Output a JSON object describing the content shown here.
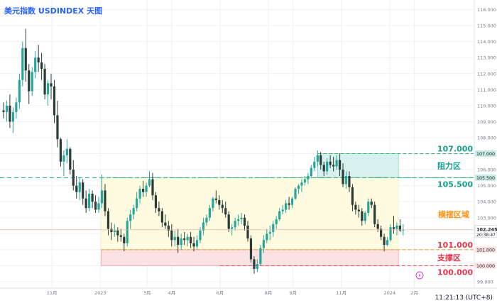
{
  "page": {
    "title": "美元指数 USDINDEX 天图",
    "utc_label": "11:21:13 (UTC+8)"
  },
  "colors": {
    "up": "#26a69a",
    "down": "#ef5350",
    "candle_dark": "#2b3b35",
    "resistance_fill": "#d6f1ee",
    "range_fill": "#fffbe0",
    "support_fill": "#fde2e4",
    "green_line": "#3fb37a",
    "teal_line": "#1aa89c",
    "orange_line": "#f7931a",
    "red_line": "#ef4459",
    "resistance_text": "#13a08a",
    "range_text": "#f7931a",
    "support_text": "#e8344b",
    "grid": "#eef0f3",
    "axis_text": "#787b86"
  },
  "chart_data": {
    "type": "candlestick",
    "title": "美元指数 USDINDEX 天图",
    "x_ticks": [
      "11月",
      "2023",
      "3月",
      "4月",
      "6月",
      "8月",
      "9月",
      "11月",
      "2024",
      "2月"
    ],
    "y_ticks": [
      99.0,
      100.0,
      101.0,
      102.0,
      103.0,
      104.0,
      105.0,
      106.0,
      107.0,
      108.0,
      109.0,
      110.0,
      111.0,
      112.0,
      113.0,
      114.0,
      115.0,
      116.0
    ],
    "ylim": [
      98.6,
      116.6
    ],
    "last_price": {
      "value": 102.245,
      "label": "102.245",
      "countdown": "20:38:47"
    },
    "levels": [
      {
        "name": "阻力区 upper",
        "value": 107.0,
        "label": "107.000",
        "axis_label": "107.000"
      },
      {
        "name": "阻力区 lower",
        "value": 105.5,
        "label": "105.500",
        "axis_label": "105.500"
      },
      {
        "name": "support upper",
        "value": 101.0,
        "label": "101.000",
        "axis_label": "101.000"
      },
      {
        "name": "support lower",
        "value": 100.0,
        "label": "100.000",
        "axis_label": "100.000"
      }
    ],
    "zones": [
      {
        "label": "阻力区",
        "low": 105.5,
        "high": 107.0,
        "from": "2023-10-02",
        "to": "2024-01-12"
      },
      {
        "label": "横摆区域",
        "low": 101.0,
        "high": 105.5,
        "from": "2023-01-02",
        "to": "2024-01-12"
      },
      {
        "label": "支撑区",
        "low": 100.0,
        "high": 101.0,
        "from": "2023-01-02",
        "to": "2024-01-12"
      }
    ],
    "series": [
      {
        "values": [
          [
            "2022-09-01",
            109.7,
            110.2,
            109.2,
            109.6
          ],
          [
            "2022-09-05",
            109.6,
            110.3,
            109.0,
            110.0
          ],
          [
            "2022-09-09",
            110.0,
            110.7,
            108.6,
            109.0
          ],
          [
            "2022-09-13",
            109.0,
            109.9,
            108.3,
            109.6
          ],
          [
            "2022-09-17",
            109.6,
            110.5,
            109.2,
            110.2
          ],
          [
            "2022-09-21",
            110.2,
            112.0,
            109.8,
            111.6
          ],
          [
            "2022-09-25",
            111.6,
            114.0,
            111.2,
            113.6
          ],
          [
            "2022-09-29",
            113.6,
            114.8,
            111.5,
            112.2
          ],
          [
            "2022-10-03",
            112.2,
            112.6,
            110.1,
            110.9
          ],
          [
            "2022-10-07",
            110.9,
            112.4,
            110.6,
            112.1
          ],
          [
            "2022-10-11",
            112.1,
            113.4,
            111.7,
            113.0
          ],
          [
            "2022-10-15",
            113.0,
            113.8,
            112.1,
            112.7
          ],
          [
            "2022-10-19",
            112.7,
            113.3,
            111.6,
            112.3
          ],
          [
            "2022-10-23",
            112.3,
            112.6,
            110.4,
            110.7
          ],
          [
            "2022-10-27",
            110.7,
            111.6,
            110.0,
            111.4
          ],
          [
            "2022-10-31",
            111.4,
            112.0,
            110.4,
            111.2
          ],
          [
            "2022-11-04",
            111.2,
            111.6,
            108.9,
            109.4
          ],
          [
            "2022-11-08",
            109.4,
            110.3,
            107.4,
            107.9
          ],
          [
            "2022-11-12",
            107.9,
            108.0,
            106.2,
            106.5
          ],
          [
            "2022-11-16",
            106.5,
            107.2,
            105.6,
            106.9
          ],
          [
            "2022-11-20",
            106.9,
            107.9,
            106.4,
            107.3
          ],
          [
            "2022-11-24",
            107.3,
            107.4,
            105.7,
            106.0
          ],
          [
            "2022-11-28",
            106.0,
            106.6,
            104.7,
            105.0
          ],
          [
            "2022-12-02",
            105.0,
            105.6,
            104.2,
            104.6
          ],
          [
            "2022-12-06",
            104.6,
            105.5,
            104.1,
            105.2
          ],
          [
            "2022-12-10",
            105.2,
            105.4,
            103.8,
            104.2
          ],
          [
            "2022-12-14",
            104.2,
            104.7,
            103.3,
            103.6
          ],
          [
            "2022-12-18",
            103.6,
            104.8,
            103.4,
            104.5
          ],
          [
            "2022-12-22",
            104.5,
            104.7,
            103.6,
            104.0
          ],
          [
            "2022-12-26",
            104.0,
            104.4,
            103.3,
            103.5
          ],
          [
            "2022-12-30",
            103.5,
            104.3,
            103.3,
            103.9
          ],
          [
            "2023-01-03",
            103.9,
            105.7,
            103.6,
            104.7
          ],
          [
            "2023-01-07",
            104.7,
            105.1,
            103.1,
            103.4
          ],
          [
            "2023-01-11",
            103.4,
            103.6,
            101.9,
            102.3
          ],
          [
            "2023-01-15",
            102.3,
            102.7,
            101.6,
            102.1
          ],
          [
            "2023-01-19",
            102.1,
            102.6,
            101.8,
            102.2
          ],
          [
            "2023-01-23",
            102.2,
            102.4,
            101.5,
            101.9
          ],
          [
            "2023-01-27",
            101.9,
            102.3,
            101.5,
            101.8
          ],
          [
            "2023-01-31",
            101.8,
            102.0,
            100.9,
            101.4
          ],
          [
            "2023-02-04",
            101.4,
            103.0,
            101.2,
            102.8
          ],
          [
            "2023-02-08",
            102.8,
            103.5,
            102.3,
            103.2
          ],
          [
            "2023-02-12",
            103.2,
            103.8,
            102.9,
            103.6
          ],
          [
            "2023-02-16",
            103.6,
            104.6,
            103.4,
            104.2
          ],
          [
            "2023-02-20",
            104.2,
            105.0,
            103.9,
            104.8
          ],
          [
            "2023-02-24",
            104.8,
            105.3,
            104.3,
            104.6
          ],
          [
            "2023-02-28",
            104.6,
            105.2,
            104.3,
            105.0
          ],
          [
            "2023-03-04",
            105.0,
            105.9,
            104.9,
            105.4
          ],
          [
            "2023-03-08",
            105.4,
            105.8,
            104.1,
            104.4
          ],
          [
            "2023-03-12",
            104.4,
            104.6,
            103.3,
            103.6
          ],
          [
            "2023-03-16",
            103.6,
            104.0,
            103.1,
            103.4
          ],
          [
            "2023-03-20",
            103.4,
            103.6,
            102.4,
            102.7
          ],
          [
            "2023-03-24",
            102.7,
            103.2,
            102.3,
            102.5
          ],
          [
            "2023-03-28",
            102.5,
            102.8,
            101.8,
            102.2
          ],
          [
            "2023-04-01",
            102.2,
            102.6,
            101.2,
            101.6
          ],
          [
            "2023-04-05",
            101.6,
            102.2,
            101.2,
            101.8
          ],
          [
            "2023-04-09",
            101.8,
            102.3,
            100.8,
            101.3
          ],
          [
            "2023-04-13",
            101.3,
            102.0,
            101.0,
            101.7
          ],
          [
            "2023-04-17",
            101.7,
            102.1,
            101.3,
            101.6
          ],
          [
            "2023-04-21",
            101.6,
            102.0,
            101.2,
            101.8
          ],
          [
            "2023-04-25",
            101.8,
            102.1,
            101.1,
            101.4
          ],
          [
            "2023-04-29",
            101.4,
            101.8,
            100.9,
            101.2
          ],
          [
            "2023-05-03",
            101.2,
            101.9,
            101.0,
            101.6
          ],
          [
            "2023-05-07",
            101.6,
            102.4,
            101.4,
            102.2
          ],
          [
            "2023-05-11",
            102.2,
            103.0,
            101.9,
            102.7
          ],
          [
            "2023-05-15",
            102.7,
            103.2,
            102.5,
            103.0
          ],
          [
            "2023-05-19",
            103.0,
            103.8,
            102.8,
            103.6
          ],
          [
            "2023-05-23",
            103.6,
            104.3,
            103.4,
            104.2
          ],
          [
            "2023-05-27",
            104.2,
            104.7,
            103.9,
            104.1
          ],
          [
            "2023-05-31",
            104.1,
            104.4,
            103.5,
            103.8
          ],
          [
            "2023-06-04",
            103.8,
            104.1,
            103.3,
            103.6
          ],
          [
            "2023-06-08",
            103.6,
            104.0,
            103.0,
            103.2
          ],
          [
            "2023-06-12",
            103.2,
            103.4,
            102.1,
            102.3
          ],
          [
            "2023-06-16",
            102.3,
            102.6,
            101.9,
            102.4
          ],
          [
            "2023-06-20",
            102.4,
            103.0,
            102.2,
            102.8
          ],
          [
            "2023-06-24",
            102.8,
            103.2,
            102.5,
            102.9
          ],
          [
            "2023-06-28",
            102.9,
            103.3,
            102.6,
            103.0
          ],
          [
            "2023-07-02",
            103.0,
            103.2,
            102.2,
            102.5
          ],
          [
            "2023-07-06",
            102.5,
            102.8,
            101.5,
            101.7
          ],
          [
            "2023-07-10",
            101.7,
            101.9,
            100.2,
            100.4
          ],
          [
            "2023-07-14",
            100.4,
            100.6,
            99.5,
            99.8
          ],
          [
            "2023-07-18",
            99.8,
            100.4,
            99.6,
            100.1
          ],
          [
            "2023-07-22",
            100.1,
            101.3,
            100.0,
            101.1
          ],
          [
            "2023-07-26",
            101.1,
            101.9,
            100.8,
            101.6
          ],
          [
            "2023-07-30",
            101.6,
            102.3,
            101.4,
            102.0
          ],
          [
            "2023-08-03",
            102.0,
            102.5,
            101.6,
            102.1
          ],
          [
            "2023-08-07",
            102.1,
            102.8,
            101.8,
            102.6
          ],
          [
            "2023-08-11",
            102.6,
            103.1,
            102.3,
            102.9
          ],
          [
            "2023-08-15",
            102.9,
            103.6,
            102.8,
            103.4
          ],
          [
            "2023-08-19",
            103.4,
            103.8,
            103.2,
            103.5
          ],
          [
            "2023-08-23",
            103.5,
            104.1,
            103.3,
            103.9
          ],
          [
            "2023-08-27",
            103.9,
            104.3,
            103.5,
            103.8
          ],
          [
            "2023-08-31",
            103.8,
            104.3,
            103.6,
            104.2
          ],
          [
            "2023-09-04",
            104.2,
            104.9,
            104.1,
            104.8
          ],
          [
            "2023-09-08",
            104.8,
            105.1,
            104.5,
            105.0
          ],
          [
            "2023-09-12",
            105.0,
            105.4,
            104.6,
            105.2
          ],
          [
            "2023-09-16",
            105.2,
            105.6,
            105.0,
            105.4
          ],
          [
            "2023-09-20",
            105.4,
            105.8,
            105.1,
            105.6
          ],
          [
            "2023-09-24",
            105.6,
            106.3,
            105.5,
            106.1
          ],
          [
            "2023-09-28",
            106.1,
            106.8,
            105.9,
            106.5
          ],
          [
            "2023-10-02",
            106.5,
            107.2,
            106.2,
            106.9
          ],
          [
            "2023-10-06",
            106.9,
            107.1,
            106.0,
            106.3
          ],
          [
            "2023-10-10",
            106.3,
            106.5,
            105.6,
            105.9
          ],
          [
            "2023-10-14",
            105.9,
            106.7,
            105.7,
            106.5
          ],
          [
            "2023-10-18",
            106.5,
            106.9,
            106.1,
            106.3
          ],
          [
            "2023-10-22",
            106.3,
            106.8,
            105.9,
            106.2
          ],
          [
            "2023-10-26",
            106.2,
            106.9,
            106.0,
            106.6
          ],
          [
            "2023-10-30",
            106.6,
            107.0,
            105.6,
            106.0
          ],
          [
            "2023-11-03",
            106.0,
            106.4,
            104.9,
            105.1
          ],
          [
            "2023-11-07",
            105.1,
            105.9,
            104.8,
            105.6
          ],
          [
            "2023-11-11",
            105.6,
            105.9,
            104.6,
            104.9
          ],
          [
            "2023-11-15",
            104.9,
            105.1,
            103.4,
            103.8
          ],
          [
            "2023-11-19",
            103.8,
            104.0,
            103.2,
            103.5
          ],
          [
            "2023-11-23",
            103.5,
            103.8,
            103.0,
            103.4
          ],
          [
            "2023-11-27",
            103.4,
            103.6,
            102.5,
            102.8
          ],
          [
            "2023-12-01",
            102.8,
            103.4,
            102.6,
            103.3
          ],
          [
            "2023-12-05",
            103.3,
            104.2,
            103.1,
            104.0
          ],
          [
            "2023-12-09",
            104.0,
            104.2,
            103.6,
            103.8
          ],
          [
            "2023-12-13",
            103.8,
            104.0,
            102.4,
            102.6
          ],
          [
            "2023-12-17",
            102.6,
            102.9,
            102.1,
            102.3
          ],
          [
            "2023-12-21",
            102.3,
            102.5,
            101.6,
            101.8
          ],
          [
            "2023-12-25",
            101.8,
            102.0,
            100.9,
            101.3
          ],
          [
            "2023-12-29",
            101.3,
            101.8,
            101.2,
            101.6
          ],
          [
            "2024-01-02",
            101.6,
            102.6,
            101.5,
            102.4
          ],
          [
            "2024-01-06",
            102.4,
            103.1,
            102.0,
            102.3
          ],
          [
            "2024-01-10",
            102.3,
            102.7,
            101.9,
            102.5
          ],
          [
            "2024-01-14",
            102.5,
            102.9,
            102.1,
            102.2
          ],
          [
            "2024-01-18",
            102.2,
            102.6,
            101.9,
            102.245
          ]
        ]
      }
    ]
  }
}
